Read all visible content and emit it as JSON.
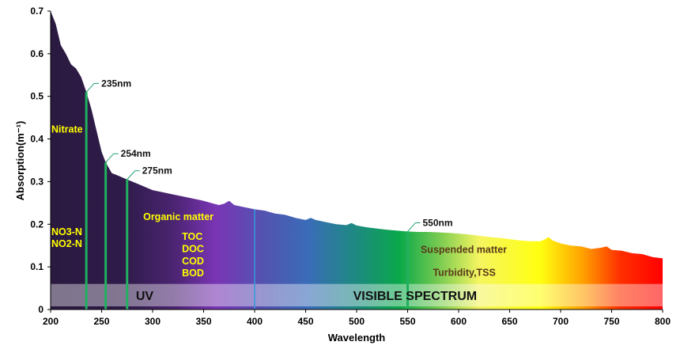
{
  "chart_data": {
    "type": "area",
    "xlabel": "Wavelength",
    "ylabel": "Absorption(m⁻¹)",
    "xlim": [
      200,
      800
    ],
    "ylim": [
      0,
      0.7
    ],
    "xticks": [
      200,
      250,
      300,
      350,
      400,
      450,
      500,
      550,
      600,
      650,
      700,
      750,
      800
    ],
    "yticks": [
      "0",
      "0.1",
      "0.2",
      "0.3",
      "0.4",
      "0.5",
      "0.6",
      "0.7"
    ],
    "grid": false,
    "fill": "visible/UV spectrum color gradient",
    "x": [
      200,
      205,
      210,
      215,
      220,
      225,
      230,
      235,
      240,
      245,
      250,
      254,
      260,
      265,
      270,
      275,
      280,
      290,
      300,
      310,
      320,
      330,
      340,
      350,
      360,
      365,
      370,
      375,
      380,
      390,
      400,
      410,
      420,
      430,
      440,
      450,
      455,
      460,
      470,
      480,
      490,
      495,
      500,
      510,
      520,
      530,
      540,
      550,
      560,
      570,
      580,
      590,
      600,
      610,
      620,
      630,
      640,
      650,
      660,
      670,
      680,
      685,
      688,
      692,
      700,
      710,
      720,
      730,
      740,
      745,
      750,
      760,
      770,
      780,
      790,
      800
    ],
    "y": [
      0.7,
      0.67,
      0.62,
      0.6,
      0.575,
      0.565,
      0.545,
      0.51,
      0.47,
      0.42,
      0.37,
      0.345,
      0.32,
      0.315,
      0.31,
      0.305,
      0.3,
      0.29,
      0.28,
      0.275,
      0.27,
      0.265,
      0.26,
      0.255,
      0.248,
      0.245,
      0.248,
      0.255,
      0.245,
      0.24,
      0.235,
      0.232,
      0.225,
      0.222,
      0.215,
      0.21,
      0.215,
      0.21,
      0.205,
      0.2,
      0.198,
      0.203,
      0.197,
      0.193,
      0.19,
      0.187,
      0.185,
      0.183,
      0.182,
      0.182,
      0.181,
      0.18,
      0.178,
      0.176,
      0.173,
      0.17,
      0.168,
      0.165,
      0.162,
      0.16,
      0.16,
      0.165,
      0.17,
      0.162,
      0.155,
      0.15,
      0.148,
      0.142,
      0.145,
      0.148,
      0.14,
      0.138,
      0.132,
      0.13,
      0.123,
      0.12
    ],
    "markers": [
      {
        "x": 235,
        "label": "235nm"
      },
      {
        "x": 254,
        "label": "254nm"
      },
      {
        "x": 275,
        "label": "275nm"
      },
      {
        "x": 550,
        "label": "550nm"
      }
    ],
    "band": {
      "ymax": 0.06,
      "labels": [
        {
          "text": "UV",
          "x": 300
        },
        {
          "text": "VISIBLE SPECTRUM",
          "x": 565
        }
      ]
    },
    "annotations": [
      {
        "text": "Nitrate",
        "x": 200,
        "y": 0.415,
        "color": "#ffff00"
      },
      {
        "text": "NO3-N",
        "x": 200,
        "y": 0.175,
        "color": "#ffff00"
      },
      {
        "text": "NO2-N",
        "x": 200,
        "y": 0.147,
        "color": "#ffff00"
      },
      {
        "text": "Organic matter",
        "x": 290,
        "y": 0.21,
        "color": "#ffff00"
      },
      {
        "text": "TOC",
        "x": 328,
        "y": 0.163,
        "color": "#ffff00"
      },
      {
        "text": "DOC",
        "x": 328,
        "y": 0.135,
        "color": "#ffff00"
      },
      {
        "text": "COD",
        "x": 328,
        "y": 0.106,
        "color": "#ffff00"
      },
      {
        "text": "BOD",
        "x": 328,
        "y": 0.078,
        "color": "#ffff00"
      },
      {
        "text": "Suspended matter",
        "x": 562,
        "y": 0.133,
        "color": "#5a3a1a"
      },
      {
        "text": "Turbidity,TSS",
        "x": 574,
        "y": 0.079,
        "color": "#5a3a1a"
      }
    ]
  }
}
